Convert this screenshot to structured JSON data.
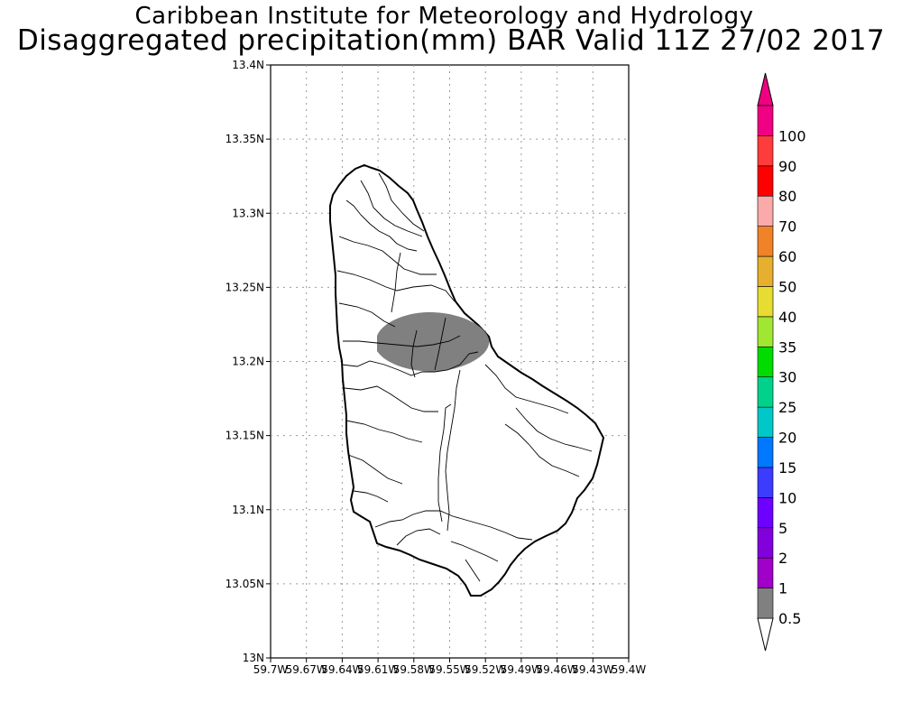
{
  "header": {
    "institute": "Caribbean Institute for Meteorology and Hydrology",
    "product": "Disaggregated precipitation(mm) BAR Valid 11Z 27/02 2017"
  },
  "map": {
    "region": "Barbados",
    "lat_range": [
      13.0,
      13.4
    ],
    "lon_range": [
      -59.7,
      -59.4
    ],
    "lat_ticks": [
      "13N",
      "13.05N",
      "13.1N",
      "13.15N",
      "13.2N",
      "13.25N",
      "13.3N",
      "13.35N",
      "13.4N"
    ],
    "lon_ticks": [
      "59.7W",
      "59.67W",
      "59.64W",
      "59.61W",
      "59.58W",
      "59.55W",
      "59.52W",
      "59.49W",
      "59.46W",
      "59.43W",
      "59.4W"
    ],
    "grid": true,
    "precip_area": {
      "center_lat": 13.215,
      "center_lon": -59.565,
      "class": "0.5-1 mm",
      "color": "#808080"
    }
  },
  "colorbar": {
    "labels": [
      "0.5",
      "1",
      "2",
      "5",
      "10",
      "15",
      "20",
      "25",
      "30",
      "35",
      "40",
      "50",
      "60",
      "70",
      "80",
      "90",
      "100"
    ],
    "colors": [
      "#808080",
      "#a000c8",
      "#8200dc",
      "#6e00ff",
      "#3c3cff",
      "#0078ff",
      "#00c8c8",
      "#00d28c",
      "#00dc00",
      "#a0e632",
      "#e6dc32",
      "#e6af2d",
      "#f08228",
      "#faaaaa",
      "#ff0000",
      "#ff3c3c",
      "#f00082"
    ],
    "extend_low_color": "#ffffff",
    "extend_high_color": "#f00082"
  }
}
